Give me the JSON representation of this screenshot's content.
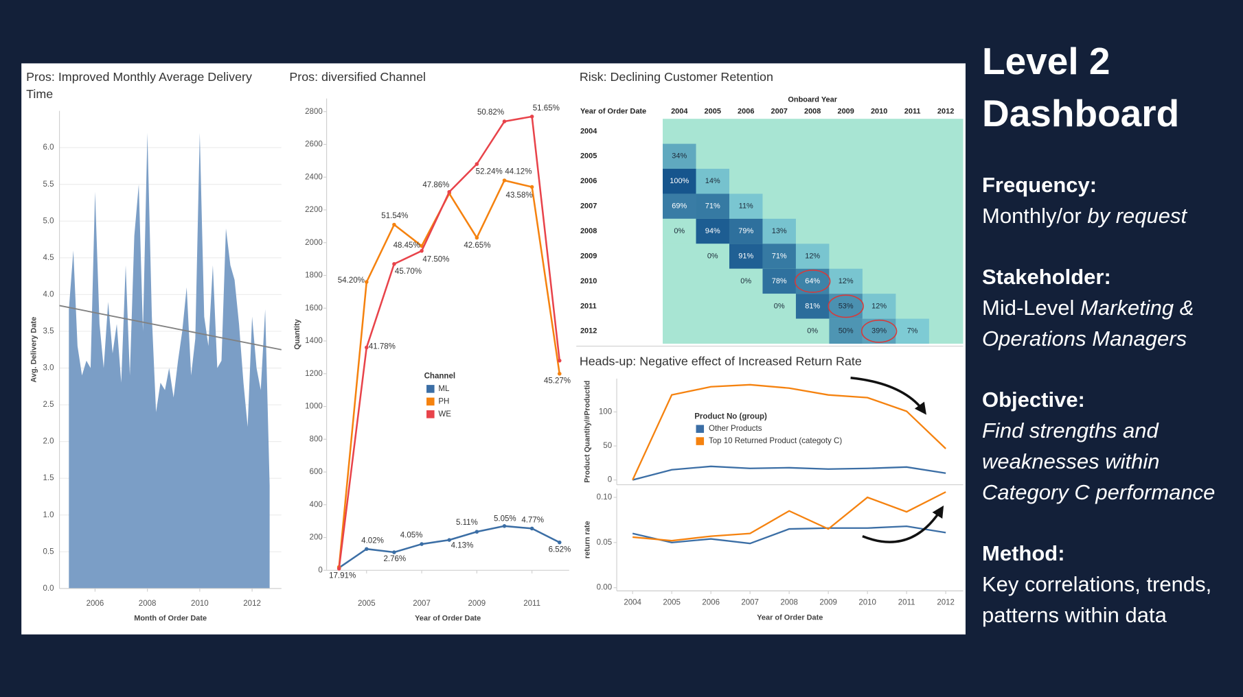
{
  "chart_data": [
    {
      "type": "area",
      "title": "Pros: Improved Monthly Average Delivery Time",
      "ylabel": "Avg. Delivery Date",
      "xlabel": "Month of Order Date",
      "color": "#7b9ec6",
      "x": [
        2005,
        2005.17,
        2005.33,
        2005.5,
        2005.67,
        2005.83,
        2006,
        2006.17,
        2006.33,
        2006.5,
        2006.67,
        2006.83,
        2007,
        2007.17,
        2007.33,
        2007.5,
        2007.67,
        2007.83,
        2008,
        2008.17,
        2008.33,
        2008.5,
        2008.67,
        2008.83,
        2009,
        2009.17,
        2009.33,
        2009.5,
        2009.67,
        2009.83,
        2010,
        2010.17,
        2010.33,
        2010.5,
        2010.67,
        2010.83,
        2011,
        2011.17,
        2011.33,
        2011.5,
        2011.67,
        2011.83,
        2012,
        2012.17,
        2012.33,
        2012.5,
        2012.67
      ],
      "values": [
        3.8,
        4.6,
        3.3,
        2.9,
        3.1,
        3.0,
        5.4,
        3.6,
        3.0,
        3.9,
        3.2,
        3.6,
        2.8,
        4.4,
        2.9,
        4.8,
        5.5,
        3.5,
        6.2,
        3.7,
        2.4,
        2.8,
        2.7,
        3.0,
        2.6,
        3.1,
        3.5,
        4.1,
        2.9,
        3.4,
        6.2,
        3.7,
        3.3,
        4.4,
        3.0,
        3.1,
        4.9,
        4.4,
        4.2,
        3.6,
        2.8,
        2.2,
        3.7,
        3.0,
        2.7,
        3.8,
        1.4
      ],
      "xlim": [
        2004.64,
        2013.12
      ],
      "xticks": [
        2006,
        2008,
        2010,
        2012
      ],
      "ylim": [
        0,
        6.5
      ],
      "yticks": [
        {
          "value": 0,
          "label": "0.0"
        },
        0.5,
        {
          "value": 1,
          "label": "1.0"
        },
        1.5,
        {
          "value": 2,
          "label": "2.0"
        },
        2.5,
        {
          "value": 3,
          "label": "3.0"
        },
        3.5,
        {
          "value": 4,
          "label": "4.0"
        },
        4.5,
        {
          "value": 5,
          "label": "5.0"
        },
        5.5,
        {
          "value": 6,
          "label": "6.0"
        }
      ],
      "grid": true,
      "trend_line": {
        "color": "#808080",
        "x": [
          2004.64,
          2013.12
        ],
        "y": [
          3.85,
          3.25
        ]
      }
    },
    {
      "type": "line",
      "title": "Pros: diversified Channel",
      "ylabel": "Quantity",
      "xlabel": "Year of Order Date",
      "legend_title": "Channel",
      "x": [
        2004,
        2005,
        2006,
        2007,
        2008,
        2009,
        2010,
        2011,
        2012
      ],
      "xlim": [
        2003.55,
        2012.35
      ],
      "xticks": [
        2005,
        2007,
        2009,
        2011
      ],
      "ylim": [
        0,
        2880
      ],
      "yticks": [
        0,
        200,
        400,
        600,
        800,
        1000,
        1200,
        1400,
        1600,
        1800,
        2000,
        2200,
        2400,
        2600,
        2800
      ],
      "grid": false,
      "series": [
        {
          "name": "ML",
          "color": "#3b6ea5",
          "values": [
            15,
            130,
            110,
            160,
            185,
            235,
            270,
            255,
            170
          ],
          "point_labels": [
            "17.91%",
            "4.02%",
            "2.76%",
            "4.05%",
            "4.13%",
            "5.11%",
            "5.05%",
            "4.77%",
            "6.52%"
          ]
        },
        {
          "name": "PH",
          "color": "#f5820f",
          "values": [
            20,
            1760,
            2110,
            1980,
            2300,
            2030,
            2380,
            2340,
            1200
          ],
          "point_labels": [
            null,
            "54.20%",
            "51.54%",
            "48.45%",
            null,
            "42.65%",
            "44.12%",
            "43.58%",
            "45.27%"
          ]
        },
        {
          "name": "WE",
          "color": "#e8434a",
          "values": [
            10,
            1360,
            1870,
            1950,
            2310,
            2480,
            2740,
            2770,
            1280
          ],
          "point_labels": [
            null,
            "41.78%",
            "45.70%",
            "47.50%",
            "47.86%",
            "52.24%",
            "50.82%",
            "51.65%",
            null
          ]
        }
      ]
    },
    {
      "type": "heatmap",
      "title": "Risk: Declining Customer Retention",
      "column_title": "Onboard Year",
      "row_title": "Year of Order Date",
      "columns": [
        2004,
        2005,
        2006,
        2007,
        2008,
        2009,
        2010,
        2011,
        2012
      ],
      "rows": [
        2004,
        2005,
        2006,
        2007,
        2008,
        2009,
        2010,
        2011,
        2012
      ],
      "background": "#a8e5d3",
      "color_range": [
        "#86d4d9",
        "#16558d"
      ],
      "values": [
        [
          null,
          null,
          null,
          null,
          null,
          null,
          null,
          null,
          null
        ],
        [
          34,
          null,
          null,
          null,
          null,
          null,
          null,
          null,
          null
        ],
        [
          100,
          14,
          null,
          null,
          null,
          null,
          null,
          null,
          null
        ],
        [
          69,
          71,
          11,
          null,
          null,
          null,
          null,
          null,
          null
        ],
        [
          0,
          94,
          79,
          13,
          null,
          null,
          null,
          null,
          null
        ],
        [
          null,
          0,
          91,
          71,
          12,
          null,
          null,
          null,
          null
        ],
        [
          null,
          null,
          0,
          78,
          64,
          12,
          null,
          null,
          null
        ],
        [
          null,
          null,
          null,
          0,
          81,
          53,
          12,
          null,
          null
        ],
        [
          null,
          null,
          null,
          null,
          0,
          50,
          39,
          7,
          null
        ]
      ],
      "value_labels": [
        [
          null,
          null,
          null,
          null,
          null,
          null,
          null,
          null,
          null
        ],
        [
          "34%",
          null,
          null,
          null,
          null,
          null,
          null,
          null,
          null
        ],
        [
          "100%",
          "14%",
          null,
          null,
          null,
          null,
          null,
          null,
          null
        ],
        [
          "69%",
          "71%",
          "11%",
          null,
          null,
          null,
          null,
          null,
          null
        ],
        [
          "0%",
          "94%",
          "79%",
          "13%",
          null,
          null,
          null,
          null,
          null
        ],
        [
          null,
          "0%",
          "91%",
          "71%",
          "12%",
          null,
          null,
          null,
          null
        ],
        [
          null,
          null,
          "0%",
          "78%",
          "64%",
          "12%",
          null,
          null,
          null
        ],
        [
          null,
          null,
          null,
          "0%",
          "81%",
          "53%",
          "12%",
          null,
          null
        ],
        [
          null,
          null,
          null,
          null,
          "0%",
          "50%",
          "39%",
          "7%",
          null
        ]
      ]
    },
    {
      "type": "line",
      "title": "Heads-up: Negative effect of Increased Return Rate",
      "xlabel": "Year of Order Date",
      "legend_title": "Product No (group)",
      "legend": [
        {
          "name": "Other Products",
          "color": "#3b6ea5"
        },
        {
          "name": "Top 10 Returned Product (categoty C)",
          "color": "#f5820f"
        }
      ],
      "x": [
        2004,
        2005,
        2006,
        2007,
        2008,
        2009,
        2010,
        2011,
        2012
      ],
      "xlim": [
        2003.595,
        2012.445
      ],
      "xticks": [
        2004,
        2005,
        2006,
        2007,
        2008,
        2009,
        2010,
        2011,
        2012
      ],
      "panels": [
        {
          "ylabel": "Product Quantity/#Productid",
          "ylim": [
            -7,
            149
          ],
          "yticks": [
            0,
            50,
            100
          ],
          "series": [
            {
              "values": [
                0,
                15,
                20,
                17,
                18,
                16,
                17,
                19,
                10
              ]
            },
            {
              "values": [
                0,
                125,
                137,
                140,
                135,
                125,
                121,
                101,
                46
              ]
            }
          ]
        },
        {
          "ylabel": "return rate",
          "ylim": [
            -0.0035,
            0.1096
          ],
          "yticks": [
            {
              "value": 0,
              "label": "0.00"
            },
            {
              "value": 0.05,
              "label": "0.05"
            },
            {
              "value": 0.1,
              "label": "0.10"
            }
          ],
          "series": [
            {
              "values": [
                0.06,
                0.05,
                0.054,
                0.049,
                0.065,
                0.066,
                0.066,
                0.068,
                0.061
              ]
            },
            {
              "values": [
                0.056,
                0.052,
                0.057,
                0.06,
                0.085,
                0.065,
                0.1,
                0.084,
                0.106
              ]
            }
          ]
        }
      ]
    }
  ],
  "side_panel": {
    "title": "Level 2 Dashboard",
    "sections": [
      {
        "label": "Frequency:",
        "body": [
          {
            "text": "Monthly/or "
          },
          {
            "text": "by request",
            "italic": true
          }
        ]
      },
      {
        "label": "Stakeholder:",
        "body": [
          {
            "text": "Mid-Level "
          },
          {
            "text": "Marketing & Operations Managers",
            "italic": true
          }
        ]
      },
      {
        "label": "Objective:",
        "body": [
          {
            "text": "Find strengths and weaknesses within Category C performance",
            "italic": true
          }
        ]
      },
      {
        "label": "Method:",
        "body": [
          {
            "text": "Key correlations, trends, patterns within data"
          }
        ]
      }
    ]
  }
}
